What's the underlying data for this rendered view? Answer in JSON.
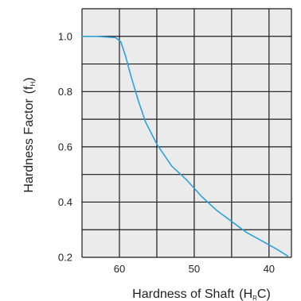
{
  "chart_data": {
    "type": "line",
    "xlabel_main": "Hardness of Shaft",
    "xlabel_paren_open": "(H",
    "xlabel_sub": "R",
    "xlabel_paren_close": "C)",
    "ylabel_main": "Hardness Factor",
    "ylabel_paren_open": "(f",
    "ylabel_sub": "H",
    "ylabel_paren_close": ")",
    "x_reversed": true,
    "xlim": [
      65,
      37
    ],
    "ylim": [
      0.2,
      1.1
    ],
    "x_ticks": [
      60,
      50,
      40
    ],
    "x_tick_labels": [
      "60",
      "50",
      "40"
    ],
    "y_ticks": [
      0.2,
      0.4,
      0.6,
      0.8,
      1.0
    ],
    "y_tick_labels": [
      "0.2",
      "0.4",
      "0.6",
      "0.8",
      "1.0"
    ],
    "x_grid": [
      65,
      60,
      55,
      50,
      45,
      40,
      37
    ],
    "y_grid": [
      0.2,
      0.3,
      0.4,
      0.5,
      0.6,
      0.7,
      0.8,
      0.9,
      1.0,
      1.1
    ],
    "grid": true,
    "plot_background": "#ebebeb",
    "grid_color": "#1a1a1a",
    "line_color": "#2aa3dc",
    "series": [
      {
        "x": [
          65,
          63,
          60.5,
          59.8,
          59.2,
          58.5,
          57.5,
          56.5,
          55,
          53,
          51,
          49,
          47,
          45,
          43,
          41,
          39,
          37.5
        ],
        "y": [
          1.0,
          1.0,
          0.995,
          0.98,
          0.93,
          0.86,
          0.77,
          0.69,
          0.61,
          0.53,
          0.48,
          0.42,
          0.37,
          0.33,
          0.29,
          0.26,
          0.23,
          0.205
        ]
      }
    ]
  }
}
